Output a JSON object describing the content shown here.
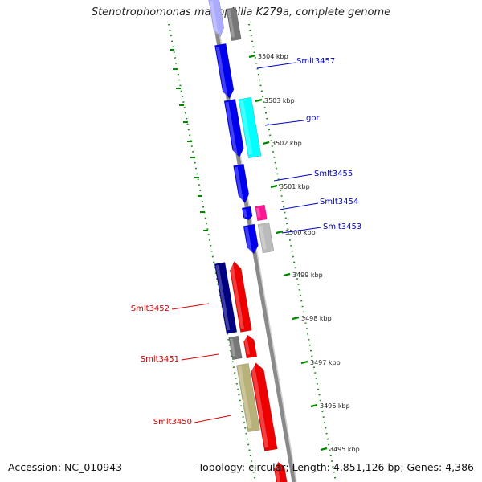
{
  "title": "Stenotrophomonas maltophilia K279a, complete genome",
  "accession": "Accession: NC_010943",
  "topology": "Topology: circular; Length: 4,851,126 bp; Genes: 4,386",
  "colors": {
    "forward": "#0000ee",
    "reverse": "#ee0000",
    "rna": "#00ffff",
    "pink": "#ff1493",
    "gray": "#777777",
    "lightgray": "#bbbbbb",
    "navy": "#000080",
    "khaki": "#b8b27a",
    "backbone": "#888888",
    "tick": "#008800",
    "label_forward": "#0000bb",
    "label_reverse": "#cc0000"
  },
  "ticks": [
    {
      "label": "3504 kbp"
    },
    {
      "label": "3503 kbp"
    },
    {
      "label": "3502 kbp"
    },
    {
      "label": "3501 kbp"
    },
    {
      "label": "3500 kbp"
    },
    {
      "label": "3499 kbp"
    },
    {
      "label": "3498 kbp"
    },
    {
      "label": "3497 kbp"
    },
    {
      "label": "3496 kbp"
    },
    {
      "label": "3495 kbp"
    }
  ],
  "gene_labels": [
    {
      "text": "Smlt3457",
      "strand": "forward"
    },
    {
      "text": "gor",
      "strand": "forward"
    },
    {
      "text": "Smlt3455",
      "strand": "forward"
    },
    {
      "text": "Smlt3454",
      "strand": "forward"
    },
    {
      "text": "Smlt3453",
      "strand": "forward"
    },
    {
      "text": "Smlt3452",
      "strand": "reverse"
    },
    {
      "text": "Smlt3451",
      "strand": "reverse"
    },
    {
      "text": "Smlt3450",
      "strand": "reverse"
    }
  ]
}
